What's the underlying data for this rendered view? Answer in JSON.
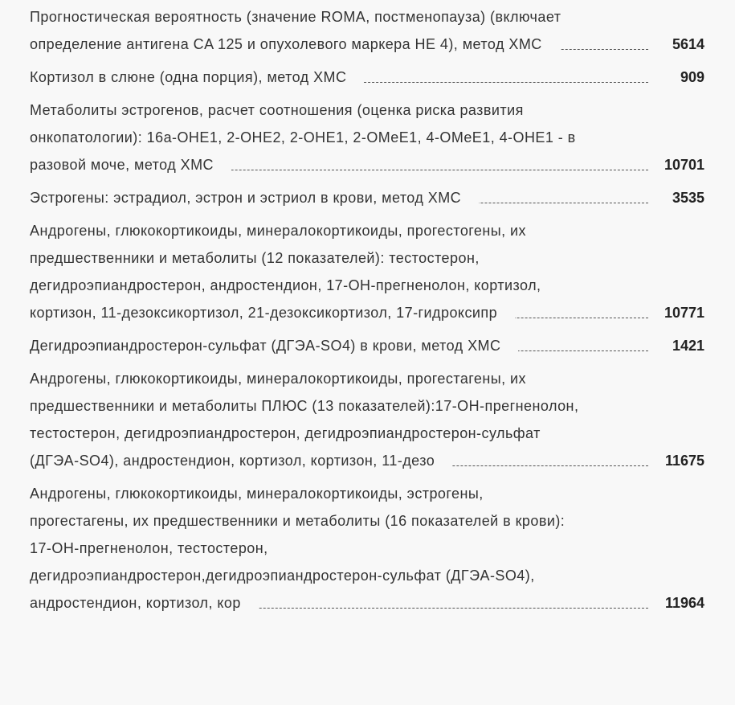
{
  "items": [
    {
      "name": "Прогностическая вероятность (значение ROMA, постменопауза) (включает определение антигена CA 125 и опухолевого маркера HE 4), метод ХМС",
      "price": "5614"
    },
    {
      "name": "Кортизол в слюне (одна порция), метод ХМС",
      "price": "909"
    },
    {
      "name": "Метаболиты эстрогенов, расчет соотношения (оценка риска развития онкопатологии): 16a-OHE1, 2-OHE2, 2-OHE1, 2-OMeE1, 4-OMeE1, 4-OHE1 - в разовой моче, метод ХМС",
      "price": "10701"
    },
    {
      "name": "Эстрогены: эстрадиол, эстрон и эстриол в крови, метод ХМС",
      "price": "3535"
    },
    {
      "name": "Андрогены, глюкокортикоиды, минералокортикоиды, прогестогены, их предшественники и метаболиты (12 показателей): тестостерон, дегидроэпиандростерон, андростендион, 17-ОН-прегненолон, кортизол, кортизон, 11-дезоксикортизол, 21-дезоксикортизол, 17-гидроксипр",
      "price": "10771"
    },
    {
      "name": "Дегидроэпиандростерон-сульфат (ДГЭА-SO4) в крови, метод ХМС",
      "price": "1421"
    },
    {
      "name": "Андрогены, глюкокортикоиды, минералокортикоиды, прогестагены, их предшественники и метаболиты ПЛЮС (13 показателей):17-ОН-прегненолон, тестостерон, дегидроэпиандростерон, дегидроэпиандростерон-сульфат (ДГЭА-SO4), андростендион, кортизол, кортизон, 11-дезо",
      "price": "11675"
    },
    {
      "name": "Андрогены, глюкокортикоиды, минералокортикоиды, эстрогены, прогестагены, их предшественники и метаболиты (16 показателей в крови): 17-ОН-прегненолон, тестостерон, дегидроэпиандростерон,дегидроэпиандростерон-сульфат (ДГЭА-SO4), андростендион, кортизол, кор",
      "price": "11964"
    }
  ]
}
